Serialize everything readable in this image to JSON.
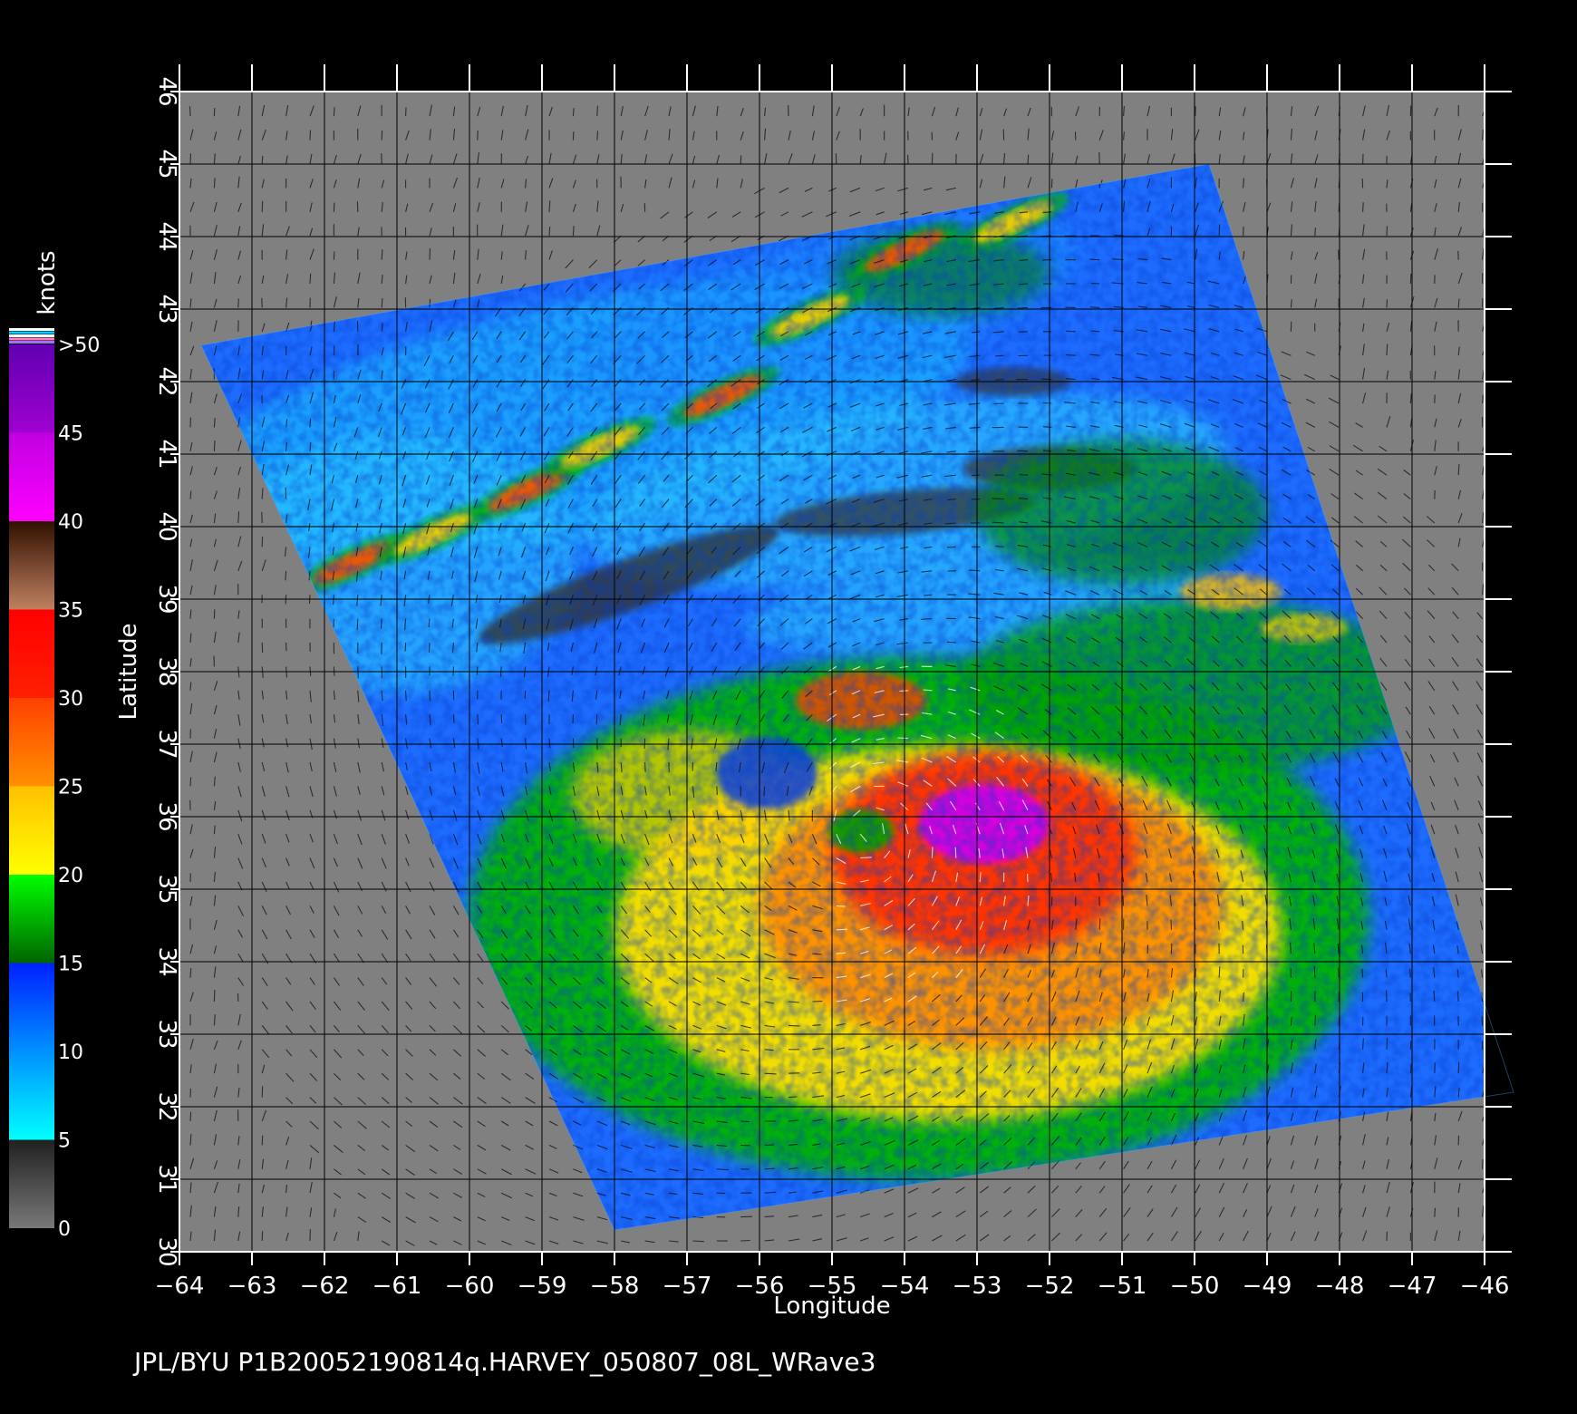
{
  "chart_data": {
    "type": "heatmap",
    "description_units": "wind speed (knots) over longitude/latitude",
    "xlabel": "Longitude",
    "ylabel": "Latitude",
    "xlim": [
      -64,
      -46
    ],
    "ylim": [
      30,
      46
    ],
    "x_ticks": [
      "-64",
      "-63",
      "-62",
      "-61",
      "-60",
      "-59",
      "-58",
      "-57",
      "-56",
      "-55",
      "-54",
      "-53",
      "-52",
      "-51",
      "-50",
      "-49",
      "-48",
      "-47",
      "-46"
    ],
    "y_ticks": [
      "30",
      "31",
      "32",
      "33",
      "34",
      "35",
      "36",
      "37",
      "38",
      "39",
      "40",
      "41",
      "42",
      "43",
      "44",
      "45",
      "46"
    ],
    "grid": true,
    "swath_corners": [
      [
        -63.7,
        42.5
      ],
      [
        -49.8,
        45.0
      ],
      [
        -45.6,
        32.2
      ],
      [
        -58.0,
        30.3
      ]
    ],
    "storm_center": [
      -54.5,
      35.8
    ],
    "max_wind_center": [
      -52.9,
      35.9
    ],
    "colorbar": {
      "title": "knots",
      "placement": "left",
      "tick_labels": [
        ">50",
        "45",
        "40",
        "35",
        "30",
        "25",
        "20",
        "15",
        "10",
        "5",
        "0"
      ],
      "bands": [
        {
          "from": 0,
          "to": 5,
          "color_low": "#787878",
          "color_high": "#202020"
        },
        {
          "from": 5,
          "to": 10,
          "color_low": "#00ffff",
          "color_high": "#0090ff"
        },
        {
          "from": 10,
          "to": 15,
          "color_low": "#0090ff",
          "color_high": "#0020ff"
        },
        {
          "from": 15,
          "to": 20,
          "color_low": "#006400",
          "color_high": "#00ff00"
        },
        {
          "from": 20,
          "to": 25,
          "color_low": "#ffff00",
          "color_high": "#ffc000"
        },
        {
          "from": 25,
          "to": 30,
          "color_low": "#ff9000",
          "color_high": "#ff4000"
        },
        {
          "from": 30,
          "to": 35,
          "color_low": "#ff2000",
          "color_high": "#ff0000"
        },
        {
          "from": 35,
          "to": 40,
          "color_low": "#c08060",
          "color_high": "#301000"
        },
        {
          "from": 40,
          "to": 45,
          "color_low": "#ff00ff",
          "color_high": "#c000e0"
        },
        {
          "from": 45,
          "to": 50,
          "color_low": "#a000d0",
          "color_high": "#6000b0"
        }
      ]
    }
  },
  "footer": {
    "text": "JPL/BYU  P1B20052190814q.HARVEY_050807_08L_WRave3"
  },
  "colors": {
    "background": "#000000",
    "land_no_data": "#808080",
    "grid": "#000000",
    "axis": "#ffffff",
    "barb_dark": "#111111",
    "barb_light": "#ffffff"
  }
}
